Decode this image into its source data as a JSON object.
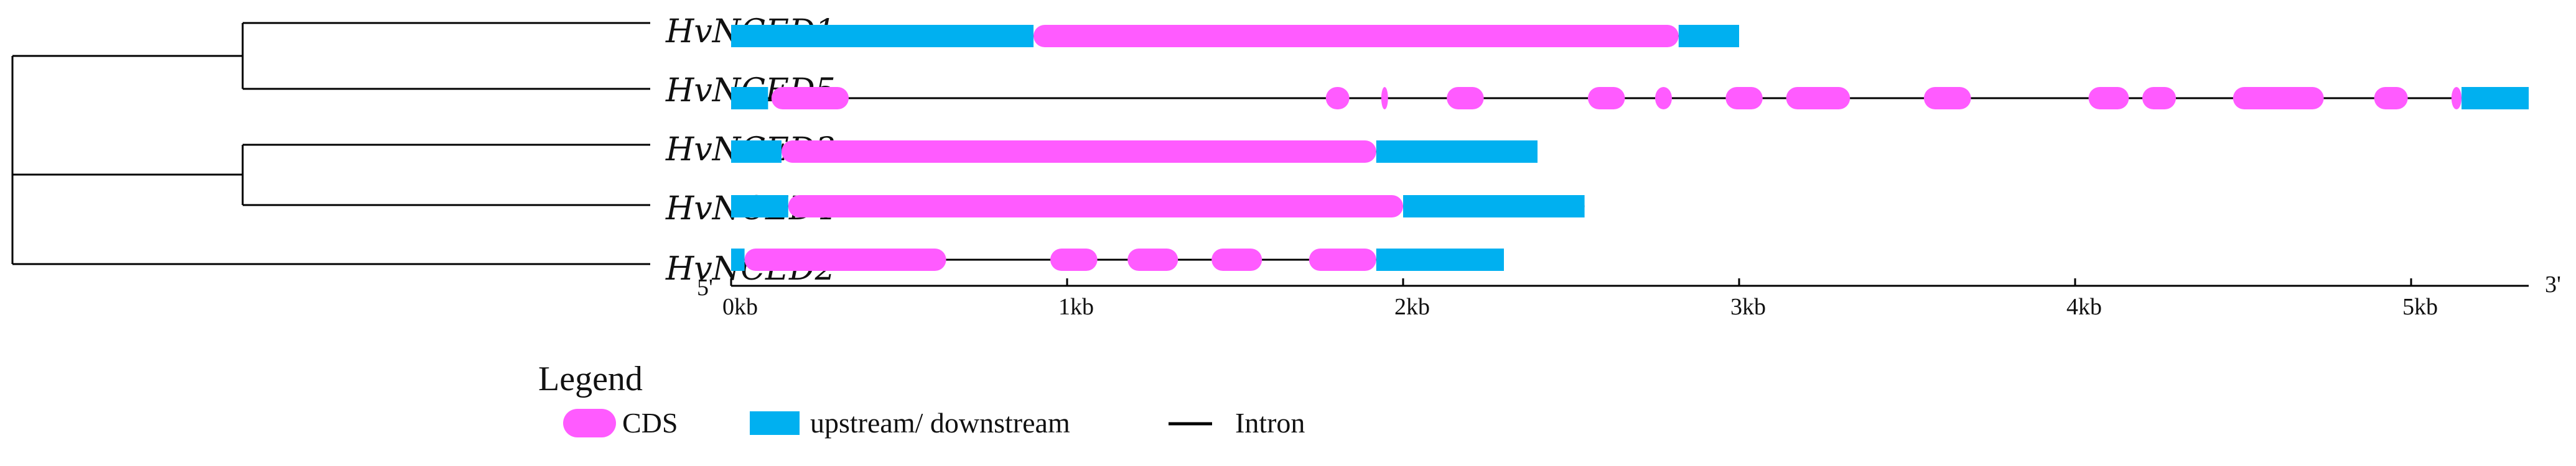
{
  "colors": {
    "cds": "#ff5bff",
    "utr": "#00b0f0",
    "intron": "#000000",
    "tree": "#000000"
  },
  "genes": [
    {
      "name": "HvNCED1",
      "length": 3.0,
      "utr": [
        [
          0,
          0.9
        ],
        [
          2.82,
          3.0
        ]
      ],
      "cds": [
        [
          0.9,
          2.82
        ]
      ]
    },
    {
      "name": "HvNCED5",
      "length": 5.35,
      "utr": [
        [
          0,
          0.11
        ],
        [
          5.15,
          5.35
        ]
      ],
      "cds": [
        [
          0.12,
          0.35
        ],
        [
          1.77,
          1.84
        ],
        [
          1.935,
          1.955
        ],
        [
          2.13,
          2.24
        ],
        [
          2.55,
          2.66
        ],
        [
          2.75,
          2.8
        ],
        [
          2.96,
          3.07
        ],
        [
          3.14,
          3.33
        ],
        [
          3.55,
          3.69
        ],
        [
          4.04,
          4.16
        ],
        [
          4.2,
          4.3
        ],
        [
          4.47,
          4.74
        ],
        [
          4.89,
          4.99
        ],
        [
          5.12,
          5.15
        ]
      ]
    },
    {
      "name": "HvNCED3",
      "length": 2.4,
      "utr": [
        [
          0,
          0.15
        ],
        [
          1.92,
          2.4
        ]
      ],
      "cds": [
        [
          0.15,
          1.92
        ]
      ]
    },
    {
      "name": "HvNCED4",
      "length": 2.54,
      "utr": [
        [
          0,
          0.17
        ],
        [
          2.0,
          2.54
        ]
      ],
      "cds": [
        [
          0.17,
          2.0
        ]
      ]
    },
    {
      "name": "HvNCED2",
      "length": 2.3,
      "utr": [
        [
          0,
          0.04
        ],
        [
          1.92,
          2.3
        ]
      ],
      "cds": [
        [
          0.04,
          0.64
        ],
        [
          0.95,
          1.09
        ],
        [
          1.18,
          1.33
        ],
        [
          1.43,
          1.58
        ],
        [
          1.72,
          1.92
        ]
      ]
    }
  ],
  "axis": {
    "min": 0,
    "max": 5.35,
    "ticks": [
      0,
      1,
      2,
      3,
      4,
      5
    ],
    "tick_labels": [
      "0kb",
      "1kb",
      "2kb",
      "3kb",
      "4kb",
      "5kb"
    ],
    "start_label": "5'",
    "end_label": "3'"
  },
  "legend": {
    "title": "Legend",
    "items": [
      {
        "kind": "cds",
        "label": "CDS"
      },
      {
        "kind": "utr",
        "label": "upstream/ downstream"
      },
      {
        "kind": "intron",
        "label": "Intron"
      }
    ]
  }
}
